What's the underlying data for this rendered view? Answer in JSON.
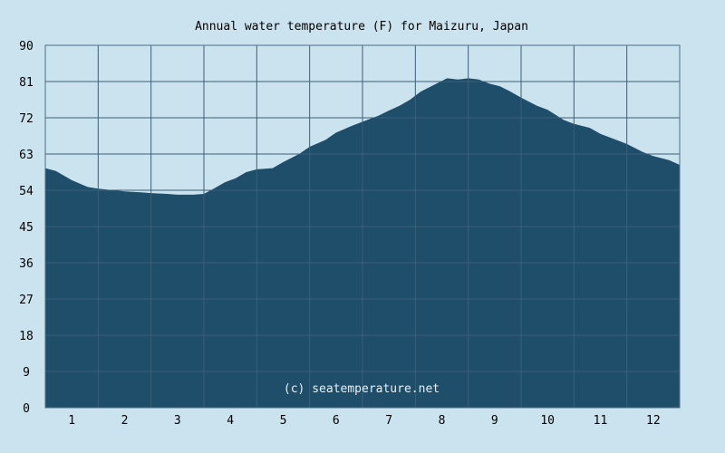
{
  "chart_data": {
    "type": "area",
    "title": "Annual water temperature (F) for Maizuru, Japan",
    "xlabel": "",
    "ylabel": "",
    "x_categories": [
      "1",
      "2",
      "3",
      "4",
      "5",
      "6",
      "7",
      "8",
      "9",
      "10",
      "11",
      "12"
    ],
    "yticks": [
      "0",
      "9",
      "18",
      "27",
      "36",
      "45",
      "54",
      "63",
      "72",
      "81",
      "90"
    ],
    "ylim": [
      0,
      90
    ],
    "grid": true,
    "watermark": "(c) seatemperature.net",
    "series": [
      {
        "x": [
          0.5,
          0.7,
          1.0,
          1.3,
          1.5,
          1.8,
          2.0,
          2.3,
          2.5,
          2.8,
          3.0,
          3.3,
          3.5,
          3.7,
          3.9,
          4.1,
          4.3,
          4.5,
          4.8,
          5.0,
          5.3,
          5.5,
          5.8,
          6.0,
          6.3,
          6.5,
          6.8,
          7.0,
          7.2,
          7.4,
          7.6,
          7.9,
          8.1,
          8.3,
          8.5,
          8.7,
          8.9,
          9.1,
          9.3,
          9.5,
          9.8,
          10.0,
          10.3,
          10.5,
          10.8,
          11.0,
          11.3,
          11.5,
          11.8,
          12.0,
          12.3,
          12.5
        ],
        "values": [
          59.5,
          58.8,
          56.5,
          54.8,
          54.4,
          54.0,
          53.7,
          53.5,
          53.3,
          53.1,
          52.9,
          52.9,
          53.1,
          54.5,
          56.0,
          57.0,
          58.5,
          59.2,
          59.5,
          61.0,
          63.0,
          64.8,
          66.5,
          68.3,
          70.0,
          71.0,
          72.5,
          73.8,
          75.0,
          76.5,
          78.5,
          80.5,
          81.8,
          81.5,
          81.8,
          81.5,
          80.5,
          79.8,
          78.5,
          77.0,
          75.0,
          74.0,
          71.5,
          70.5,
          69.5,
          68.0,
          66.5,
          65.5,
          63.5,
          62.5,
          61.5,
          60.3
        ],
        "color": "#1e4e6a"
      }
    ],
    "colors": {
      "background": "#cbe3ef",
      "area": "#1e4e6a",
      "grid": "#3c5f79",
      "frame": "#4d6e88"
    }
  }
}
